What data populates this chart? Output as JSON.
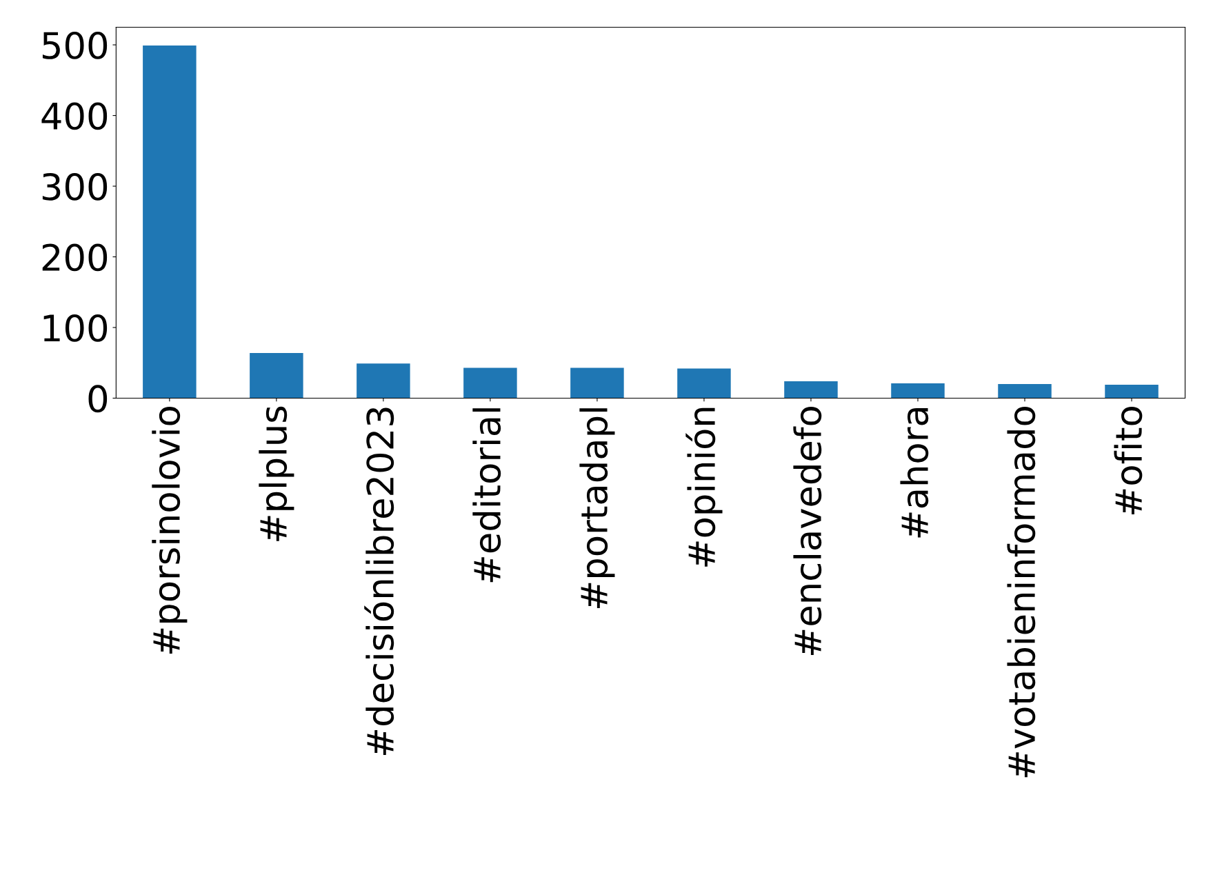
{
  "chart_data": {
    "type": "bar",
    "categories": [
      "#porsinolovio",
      "#plplus",
      "#decisiónlibre2023",
      "#editorial",
      "#portadapl",
      "#opinión",
      "#enclavedefo",
      "#ahora",
      "#votabieninformado",
      "#ofito"
    ],
    "values": [
      499,
      64,
      49,
      43,
      43,
      42,
      24,
      21,
      20,
      19
    ],
    "color": "#1f77b4",
    "ylim": [
      0,
      525
    ],
    "yticks": [
      0,
      100,
      200,
      300,
      400,
      500
    ],
    "grid": false,
    "legend": false
  }
}
